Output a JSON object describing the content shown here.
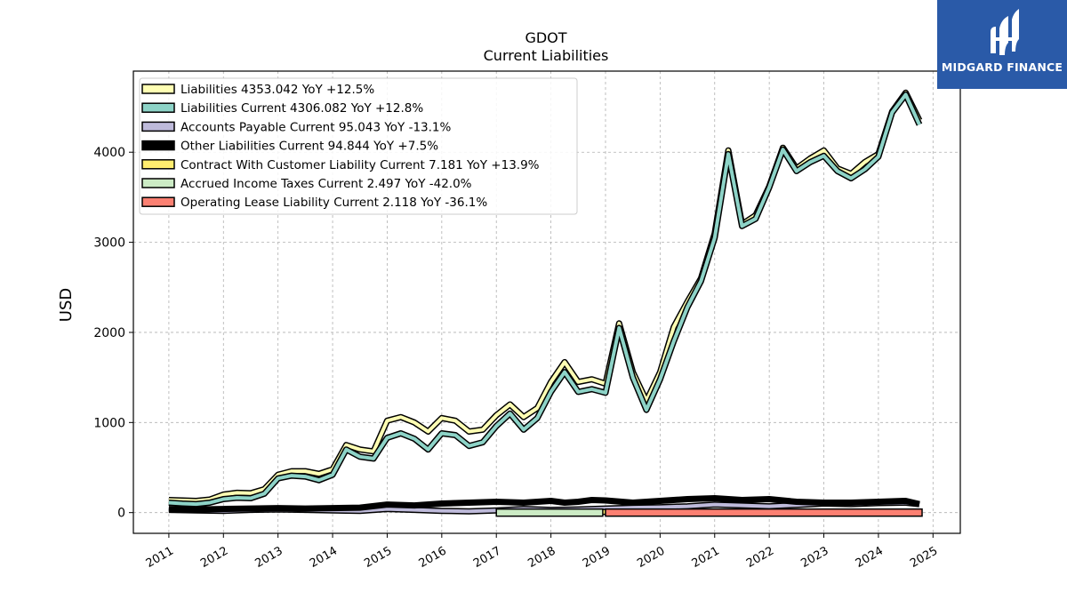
{
  "brand": {
    "name": "MIDGARD FINANCE",
    "logo_icon": "midgard-logo-icon",
    "color": "#2a5aa8"
  },
  "chart_data": {
    "type": "line",
    "title": "GDOT",
    "subtitle": "Current  Liabilities",
    "ylabel": "USD",
    "xlabel": "",
    "xlim": [
      2010.35,
      2025.5
    ],
    "ylim": [
      -230,
      4900
    ],
    "yticks": [
      0,
      1000,
      2000,
      3000,
      4000
    ],
    "xticks": [
      2011,
      2012,
      2013,
      2014,
      2015,
      2016,
      2017,
      2018,
      2019,
      2020,
      2021,
      2022,
      2023,
      2024,
      2025
    ],
    "grid": true,
    "legend_position": "top-left",
    "series": [
      {
        "name": "Liabilities  4353.042 YoY +12.5%",
        "color": "#ffffb3",
        "x": [
          2011.0,
          2011.25,
          2011.5,
          2011.75,
          2012.0,
          2012.25,
          2012.5,
          2012.75,
          2013.0,
          2013.25,
          2013.5,
          2013.75,
          2014.0,
          2014.25,
          2014.5,
          2014.75,
          2015.0,
          2015.25,
          2015.5,
          2015.75,
          2016.0,
          2016.25,
          2016.5,
          2016.75,
          2017.0,
          2017.25,
          2017.5,
          2017.75,
          2018.0,
          2018.25,
          2018.5,
          2018.75,
          2019.0,
          2019.25,
          2019.5,
          2019.75,
          2020.0,
          2020.25,
          2020.5,
          2020.75,
          2021.0,
          2021.25,
          2021.5,
          2021.75,
          2022.0,
          2022.25,
          2022.5,
          2022.75,
          2023.0,
          2023.25,
          2023.5,
          2023.75,
          2024.0,
          2024.25,
          2024.5,
          2024.75
        ],
        "values": [
          140,
          135,
          130,
          145,
          200,
          220,
          215,
          260,
          420,
          460,
          460,
          430,
          480,
          750,
          700,
          680,
          1020,
          1060,
          1000,
          900,
          1050,
          1020,
          900,
          920,
          1080,
          1200,
          1060,
          1160,
          1450,
          1670,
          1450,
          1480,
          1430,
          2100,
          1560,
          1240,
          1560,
          2060,
          2340,
          2600,
          3100,
          4020,
          3200,
          3300,
          3620,
          4050,
          3820,
          3930,
          4020,
          3820,
          3760,
          3890,
          3980,
          4450,
          4660,
          4353
        ]
      },
      {
        "name": "Liabilities Current  4306.082 YoY +12.8%",
        "color": "#8dd3c7",
        "x": [
          2011.0,
          2011.25,
          2011.5,
          2011.75,
          2012.0,
          2012.25,
          2012.5,
          2012.75,
          2013.0,
          2013.25,
          2013.5,
          2013.75,
          2014.0,
          2014.25,
          2014.5,
          2014.75,
          2015.0,
          2015.25,
          2015.5,
          2015.75,
          2016.0,
          2016.25,
          2016.5,
          2016.75,
          2017.0,
          2017.25,
          2017.5,
          2017.75,
          2018.0,
          2018.25,
          2018.5,
          2018.75,
          2019.0,
          2019.25,
          2019.5,
          2019.75,
          2020.0,
          2020.25,
          2020.5,
          2020.75,
          2021.0,
          2021.25,
          2021.5,
          2021.75,
          2022.0,
          2022.25,
          2022.5,
          2022.75,
          2023.0,
          2023.25,
          2023.5,
          2023.75,
          2024.0,
          2024.25,
          2024.5,
          2024.75
        ],
        "values": [
          110,
          100,
          95,
          110,
          150,
          165,
          160,
          210,
          380,
          410,
          400,
          360,
          420,
          700,
          620,
          600,
          830,
          880,
          820,
          700,
          880,
          860,
          740,
          780,
          960,
          1100,
          920,
          1050,
          1340,
          1560,
          1340,
          1370,
          1330,
          2050,
          1500,
          1140,
          1480,
          1900,
          2280,
          2570,
          3050,
          3980,
          3180,
          3260,
          3610,
          4030,
          3790,
          3890,
          3960,
          3790,
          3710,
          3810,
          3950,
          4440,
          4640,
          4306
        ]
      },
      {
        "name": "Accounts Payable Current  95.043 YoY -13.1%",
        "color": "#bebada",
        "x": [
          2011.0,
          2011.5,
          2012.0,
          2012.5,
          2013.0,
          2013.5,
          2014.0,
          2014.5,
          2015.0,
          2015.5,
          2016.0,
          2016.5,
          2017.0,
          2017.5,
          2018.0,
          2018.5,
          2019.0,
          2019.5,
          2020.0,
          2020.5,
          2021.0,
          2021.5,
          2022.0,
          2022.5,
          2023.0,
          2023.5,
          2024.0,
          2024.5,
          2024.75
        ],
        "values": [
          30,
          25,
          20,
          30,
          35,
          30,
          25,
          20,
          40,
          30,
          20,
          15,
          25,
          40,
          30,
          35,
          45,
          55,
          60,
          70,
          90,
          80,
          70,
          85,
          100,
          95,
          105,
          110,
          95
        ]
      },
      {
        "name": "Other Liabilities Current  94.844 YoY +7.5%",
        "color": "#000000",
        "x": [
          2011.0,
          2011.5,
          2012.0,
          2012.5,
          2013.0,
          2013.5,
          2014.0,
          2014.5,
          2015.0,
          2015.5,
          2016.0,
          2016.5,
          2017.0,
          2017.5,
          2018.0,
          2018.25,
          2018.5,
          2018.75,
          2019.0,
          2019.5,
          2020.0,
          2020.5,
          2021.0,
          2021.5,
          2022.0,
          2022.5,
          2023.0,
          2023.5,
          2024.0,
          2024.5,
          2024.75
        ],
        "values": [
          40,
          35,
          40,
          45,
          50,
          45,
          50,
          55,
          90,
          80,
          100,
          110,
          120,
          110,
          130,
          110,
          120,
          140,
          135,
          110,
          130,
          150,
          160,
          140,
          150,
          120,
          110,
          110,
          120,
          130,
          95
        ]
      },
      {
        "name": "Contract With Customer Liability Current  7.181 YoY +13.9%",
        "color": "#ffed6f",
        "x": [
          2018.0,
          2018.5,
          2019.0,
          2019.5,
          2020.0,
          2020.5,
          2021.0,
          2021.5,
          2022.0,
          2022.5,
          2023.0,
          2023.5,
          2024.0,
          2024.5,
          2024.75
        ],
        "values": [
          6,
          7,
          8,
          7,
          6,
          7,
          8,
          7,
          6,
          7,
          6,
          7,
          6,
          7,
          7
        ]
      },
      {
        "name": "Accrued Income Taxes Current  2.497 YoY -42.0%",
        "color": "#ccebc5",
        "x": [
          2017.0,
          2018.0,
          2018.95
        ],
        "values": [
          3,
          3,
          3
        ],
        "render": "band",
        "band_value": 0
      },
      {
        "name": "Operating Lease Liability Current  2.118 YoY -36.1%",
        "color": "#fb8072",
        "x": [
          2019.0,
          2024.8
        ],
        "values": [
          2,
          2
        ],
        "render": "band",
        "band_value": 0
      }
    ]
  }
}
